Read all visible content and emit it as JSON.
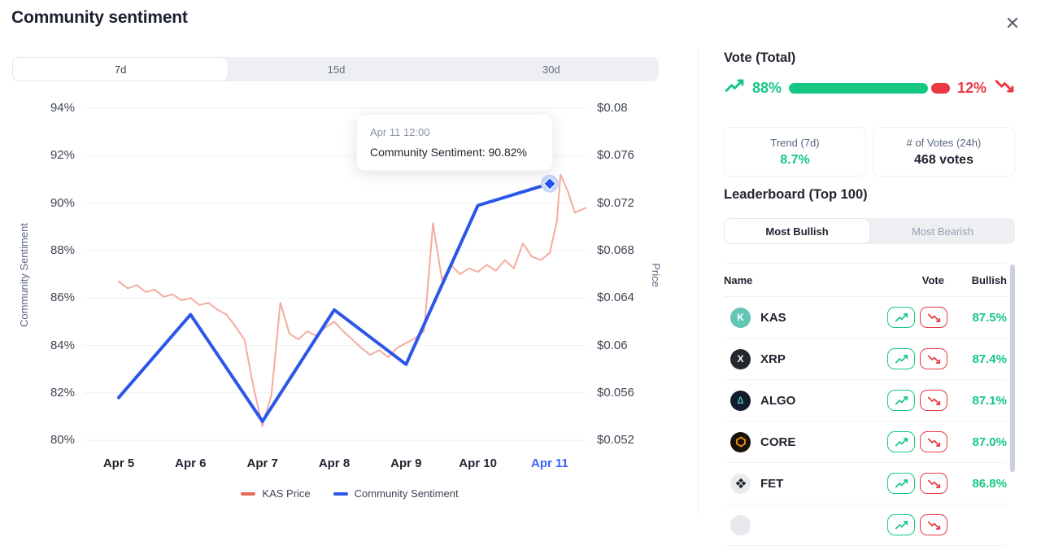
{
  "header": {
    "title": "Community sentiment"
  },
  "period_tabs": {
    "options": [
      "7d",
      "15d",
      "30d"
    ],
    "selected": "7d"
  },
  "chart_data": {
    "type": "line",
    "title": "Community sentiment",
    "x_axis": {
      "labels": [
        "Apr 5",
        "Apr 6",
        "Apr 7",
        "Apr 8",
        "Apr 9",
        "Apr 10",
        "Apr 11"
      ],
      "highlighted": "Apr 11"
    },
    "y_left": {
      "title": "Community Sentiment",
      "ticks": [
        "94%",
        "92%",
        "90%",
        "88%",
        "86%",
        "84%",
        "82%",
        "80%"
      ],
      "max": 94,
      "min": 80,
      "unit": "%"
    },
    "y_right": {
      "title": "Price",
      "ticks": [
        "$0.08",
        "$0.076",
        "$0.072",
        "$0.068",
        "$0.064",
        "$0.06",
        "$0.056",
        "$0.052"
      ],
      "max": 0.08,
      "min": 0.052,
      "unit": "$"
    },
    "grid": true,
    "legend_position": "bottom",
    "series": [
      {
        "name": "KAS Price",
        "axis": "right",
        "color": "#f4ab9f",
        "width": 2,
        "x": [
          0,
          0.125,
          0.25,
          0.375,
          0.5,
          0.625,
          0.75,
          0.875,
          1,
          1.125,
          1.25,
          1.375,
          1.5,
          1.625,
          1.75,
          1.875,
          2,
          2.125,
          2.25,
          2.375,
          2.5,
          2.625,
          2.75,
          2.875,
          3,
          3.125,
          3.25,
          3.375,
          3.5,
          3.625,
          3.75,
          3.875,
          4,
          4.125,
          4.25,
          4.3,
          4.375,
          4.5,
          4.625,
          4.75,
          4.875,
          5,
          5.125,
          5.25,
          5.375,
          5.5,
          5.625,
          5.75,
          5.875,
          6,
          6.1,
          6.15,
          6.25,
          6.35,
          6.5
        ],
        "values": [
          0.0654,
          0.0648,
          0.0651,
          0.0645,
          0.0647,
          0.0641,
          0.0643,
          0.0638,
          0.064,
          0.0634,
          0.0636,
          0.063,
          0.0626,
          0.0616,
          0.0605,
          0.0565,
          0.0532,
          0.0558,
          0.0636,
          0.061,
          0.0605,
          0.0612,
          0.0608,
          0.0615,
          0.062,
          0.0612,
          0.0605,
          0.0598,
          0.0592,
          0.0596,
          0.059,
          0.0598,
          0.0602,
          0.0606,
          0.0612,
          0.0648,
          0.0703,
          0.0655,
          0.0668,
          0.066,
          0.0665,
          0.0662,
          0.0668,
          0.0663,
          0.0672,
          0.0665,
          0.0686,
          0.0675,
          0.0672,
          0.0678,
          0.0705,
          0.0744,
          0.073,
          0.0712,
          0.0716
        ]
      },
      {
        "name": "Community Sentiment",
        "axis": "left",
        "color": "#2b57e8",
        "width": 4,
        "x": [
          0,
          1,
          2,
          3,
          4,
          5,
          6
        ],
        "values": [
          81.8,
          85.3,
          80.8,
          85.5,
          83.2,
          89.9,
          90.82
        ]
      }
    ],
    "tooltip": {
      "date": "Apr 11 12:00",
      "text": "Community Sentiment: 90.82%"
    },
    "legend": [
      {
        "label": "KAS Price",
        "color": "#e8695a"
      },
      {
        "label": "Community Sentiment",
        "color": "#2b57e8"
      }
    ]
  },
  "vote_panel": {
    "title": "Vote (Total)",
    "bullish_label": "88%",
    "bullish_value": 88,
    "bearish_label": "12%",
    "bearish_value": 12,
    "stats": [
      {
        "label": "Trend (7d)",
        "value": "8.7%",
        "tone": "green"
      },
      {
        "label": "# of Votes (24h)",
        "value": "468 votes",
        "tone": "dark"
      }
    ]
  },
  "leaderboard": {
    "title": "Leaderboard (Top 100)",
    "tabs": {
      "options": [
        "Most Bullish",
        "Most Bearish"
      ],
      "selected": "Most Bullish"
    },
    "columns": [
      "Name",
      "Vote",
      "Bullish"
    ],
    "rows": [
      {
        "name": "KAS",
        "bullish": "87.5%",
        "icon": {
          "bg": "#63c5b5",
          "fg": "#ffffff",
          "glyph": "K"
        }
      },
      {
        "name": "XRP",
        "bullish": "87.4%",
        "icon": {
          "bg": "#23292f",
          "fg": "#ffffff",
          "glyph": "X"
        }
      },
      {
        "name": "ALGO",
        "bullish": "87.1%",
        "icon": {
          "bg": "#141d2e",
          "fg": "#45c6b2",
          "glyph": "∆"
        }
      },
      {
        "name": "CORE",
        "bullish": "87.0%",
        "icon": {
          "bg": "#18120a",
          "fg": "#f7931a",
          "logo": "hexagon"
        }
      },
      {
        "name": "FET",
        "bullish": "86.8%",
        "icon": {
          "bg": "#e9ebef",
          "fg": "#22262f",
          "logo": "diamonds"
        }
      },
      {
        "name": "",
        "bullish": "",
        "icon": {
          "bg": "#e7e9ee",
          "fg": "#e7e9ee",
          "glyph": ""
        }
      }
    ]
  },
  "colors": {
    "green": "#16c784",
    "red": "#ea3943",
    "blue": "#2b57e8",
    "grid": "#f0f2f5"
  }
}
